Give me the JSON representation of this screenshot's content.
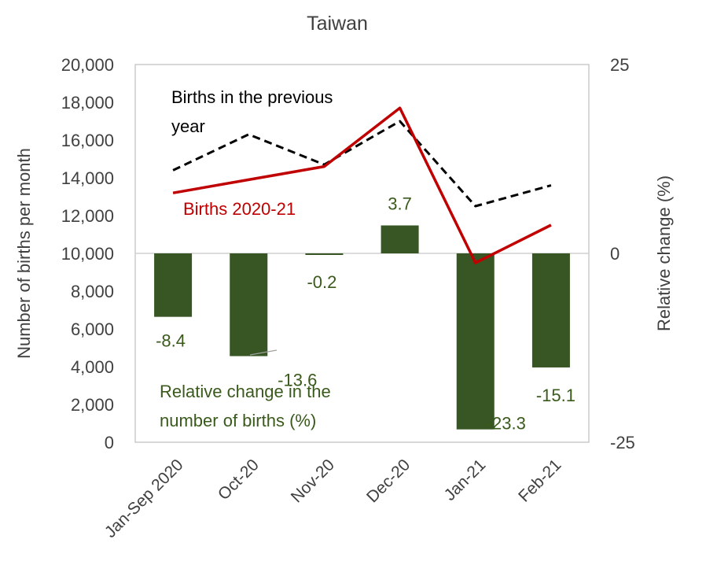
{
  "chart_data": {
    "type": "bar",
    "title": "Taiwan",
    "categories": [
      "Jan-Sep 2020",
      "Oct-20",
      "Nov-20",
      "Dec-20",
      "Jan-21",
      "Feb-21"
    ],
    "ylabel": "Number of births per month",
    "y2label": "Relative change (%)",
    "ylim": [
      0,
      20000
    ],
    "y2lim": [
      -25,
      25
    ],
    "yticks": [
      "0",
      "2,000",
      "4,000",
      "6,000",
      "8,000",
      "10,000",
      "12,000",
      "14,000",
      "16,000",
      "18,000",
      "20,000"
    ],
    "y2ticks": [
      "-25",
      "0",
      "25"
    ],
    "grid": false,
    "series": [
      {
        "name": "Relative change in the number of births (%)",
        "kind": "bar",
        "axis": "right",
        "color": "#375623",
        "values": [
          -8.4,
          -13.6,
          -0.2,
          3.7,
          -23.3,
          -15.1
        ],
        "labels": [
          "-8.4",
          "-13.6",
          "-0.2",
          "3.7",
          "-23.3",
          "-15.1"
        ]
      },
      {
        "name": "Births in the previous year",
        "kind": "line",
        "style": "dashed",
        "axis": "left",
        "color": "#000000",
        "values": [
          14400,
          16300,
          14700,
          17000,
          12500,
          13600
        ]
      },
      {
        "name": "Births 2020-21",
        "kind": "line",
        "style": "solid",
        "axis": "left",
        "color": "#c00000",
        "values": [
          13200,
          13900,
          14600,
          17700,
          9500,
          11500
        ]
      }
    ],
    "annotations": {
      "previous_year": [
        "Births in the previous",
        "year"
      ],
      "current": "Births 2020-21",
      "change": [
        "Relative change in the",
        "number of births (%)"
      ]
    }
  }
}
